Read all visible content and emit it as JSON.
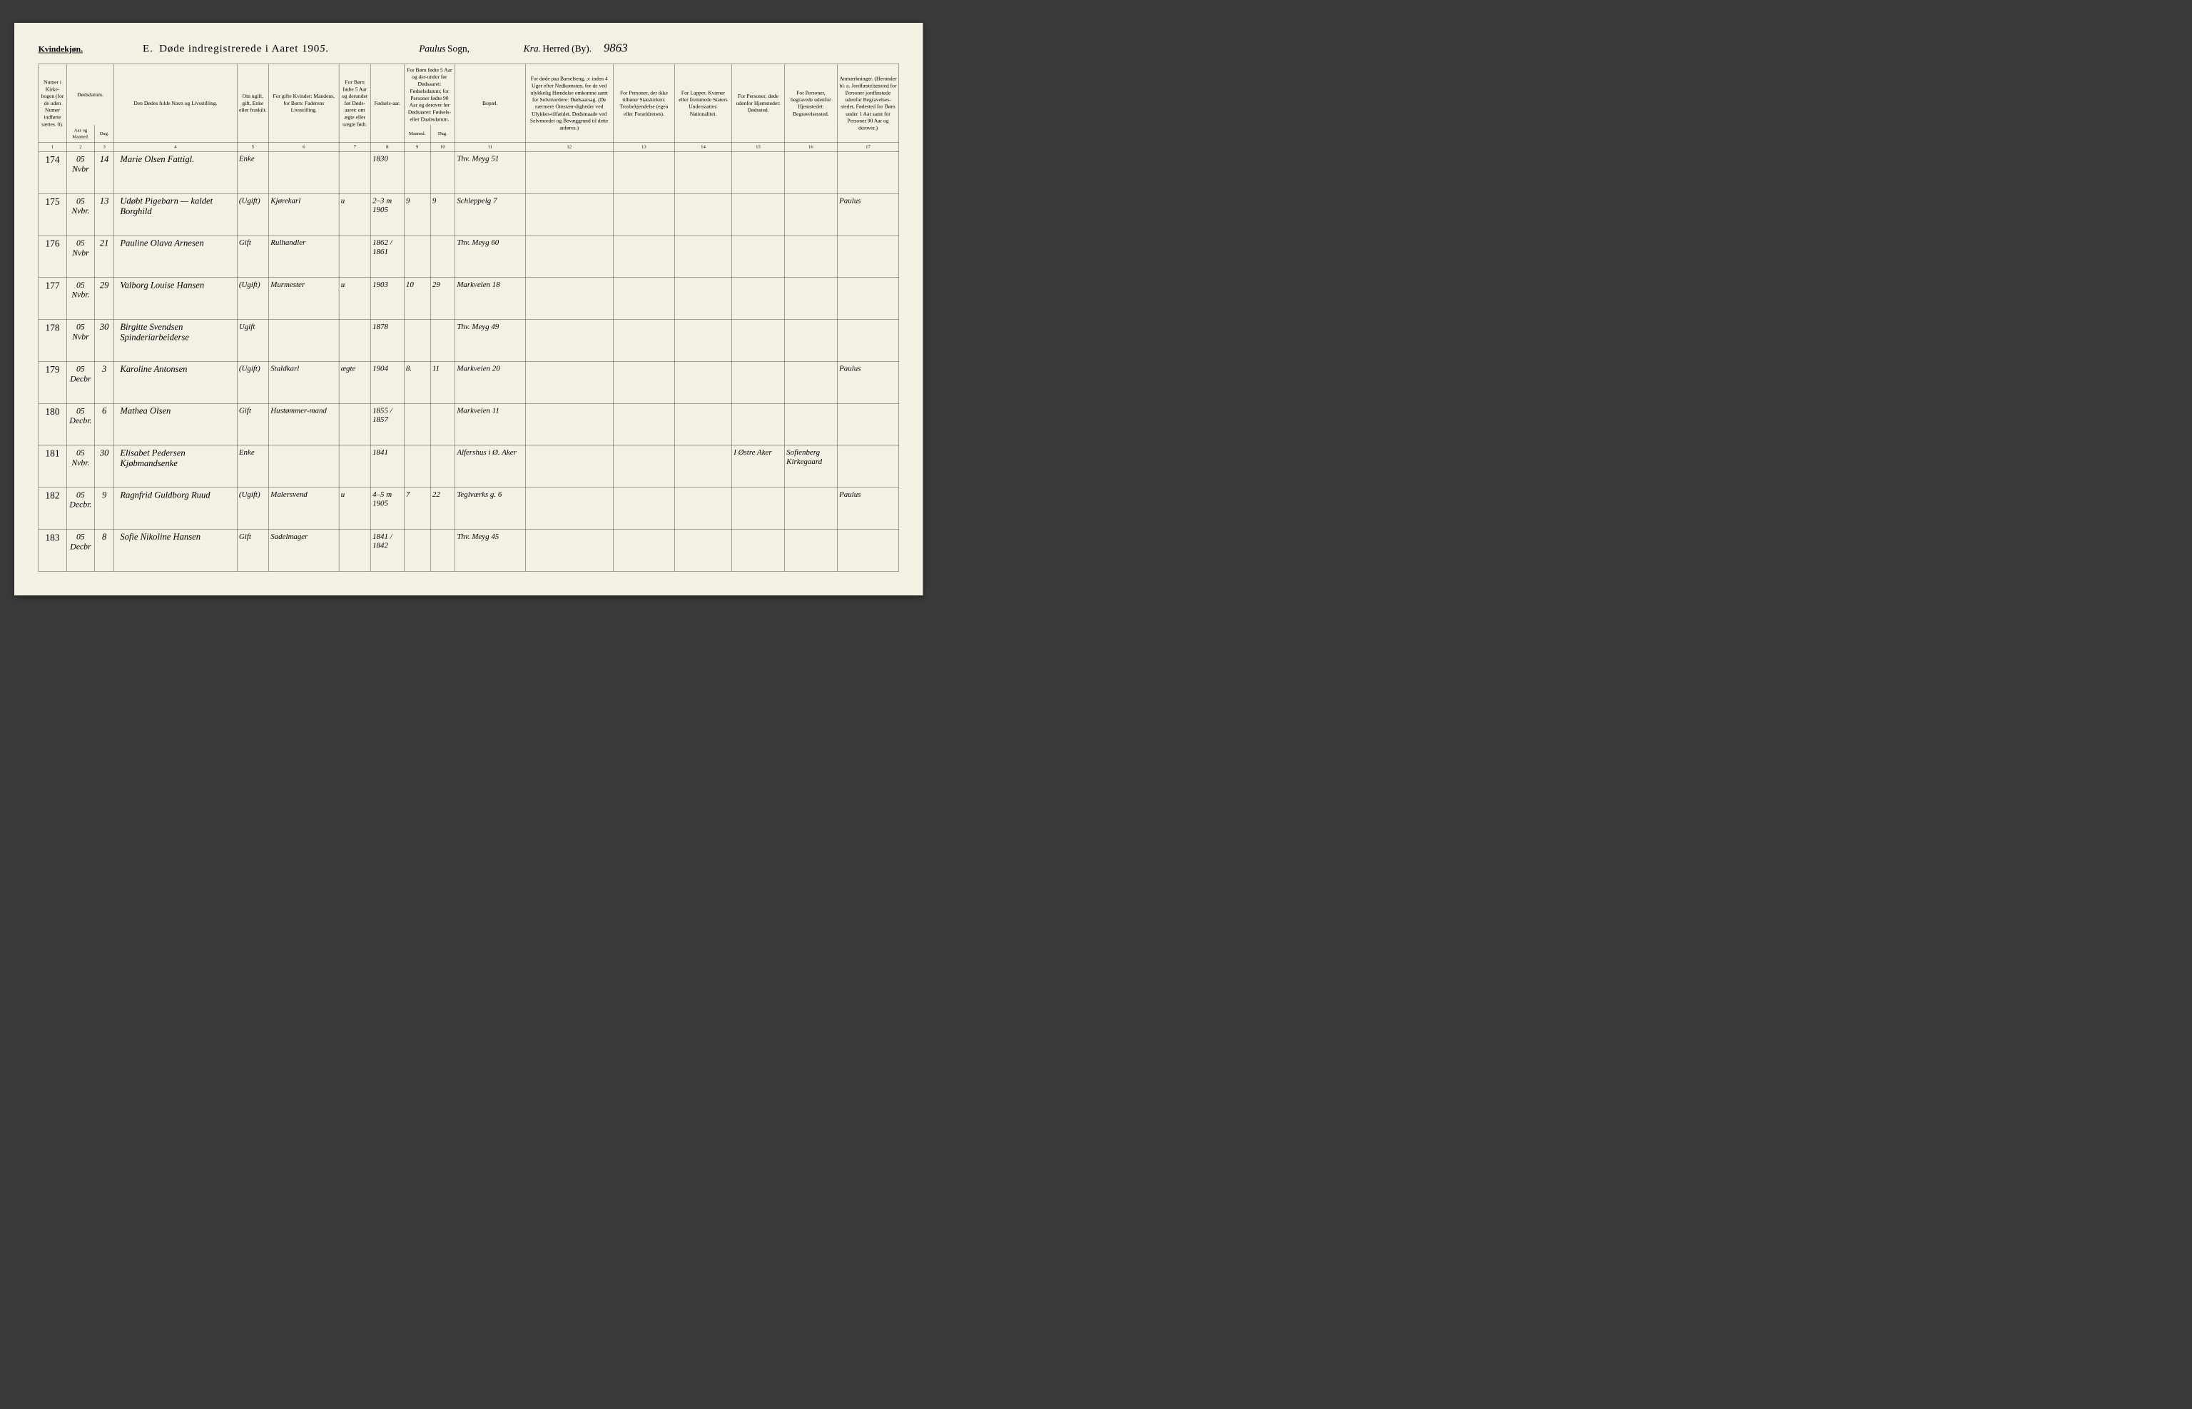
{
  "header": {
    "gender_label": "Kvindekjøn.",
    "section": "E.",
    "title_prefix": "Døde indregistrerede i Aaret 190",
    "year_suffix": "5.",
    "sogn_hand": "Paulus",
    "sogn_print": "Sogn,",
    "herred_hand": "Kra.",
    "herred_print": "Herred (By).",
    "page_number": "9863"
  },
  "columns": {
    "h1": "Numer i Kirke-bogen (for de uden Numer indførte sættes. 0).",
    "h2_top": "Dødsdatum.",
    "h2a": "Aar og Maaned.",
    "h2b": "Dag.",
    "h4": "Den Dødes fulde Navn og Livsstilling.",
    "h5": "Om ugift, gift, Enke eller fraskilt.",
    "h6": "For gifte Kvinder: Mandens, for Børn: Faderens Livsstilling.",
    "h7": "For Børn fødte 5 Aar og derunder før Døds-aaret: om ægte eller uægte født.",
    "h8": "Fødsels-aar.",
    "h9_top": "For Børn fødte 5 Aar og der-under før Dødsaaret: Fødselsdatum; for Personer fødte 90 Aar og derover før Dødsaaret: Fødsels- eller Daabsdatum.",
    "h9a": "Maaned.",
    "h9b": "Dag.",
    "h11": "Bopæl.",
    "h12": "For døde paa Barselseng, ɔ: inden 4 Uger efter Nedkomsten, for de ved ulykkelig Hændelse omkomne samt for Selvmordere: Dødsaarsag. (De nærmere Omstæn-digheder ved Ulykkes-tilfældet, Dødsmaade ved Selvmordet og Bevæggrund til dette anføres.)",
    "h13": "For Personer, der ikke tilhører Statskirken: Trosbekjendelse (egen eller Forældrenes).",
    "h14": "For Lapper, Kvæner eller fremmede Staters Undersaatter: Nationalitet.",
    "h15": "For Personer, døde udenfor Hjemstedet: Dødssted.",
    "h16": "For Personer, begravede udenfor Hjemstedet: Begravelsessted.",
    "h17": "Anmærkninger. (Herunder bl. a. Jordfæstelsessted for Personer jordfæstede udenfor Begravelses-stedet, Fødested for Børn under 1 Aar samt for Personer 90 Aar og derover.)"
  },
  "col_numbers": [
    "1",
    "2",
    "3",
    "4",
    "5",
    "6",
    "7",
    "8",
    "9",
    "10",
    "11",
    "12",
    "13",
    "14",
    "15",
    "16",
    "17"
  ],
  "rows": [
    {
      "n": "174",
      "ym": "05 Nvbr",
      "d": "14",
      "name": "Marie Olsen  Fattigl.",
      "status": "Enke",
      "occ": "",
      "leg": "",
      "yr": "1830",
      "m": "",
      "dg": "",
      "addr": "Thv. Meyg 51",
      "c12": "",
      "c13": "",
      "c14": "",
      "c15": "",
      "c16": "",
      "c17": ""
    },
    {
      "n": "175",
      "ym": "05 Nvbr.",
      "d": "13",
      "name": "Udøbt Pigebarn — kaldet Borghild",
      "status": "(Ugift)",
      "occ": "Kjørekarl",
      "leg": "u",
      "yr": "1905",
      "m": "9",
      "dg": "9",
      "addr": "Schleppelg 7",
      "c12": "",
      "c13": "",
      "c14": "",
      "c15": "",
      "c16": "",
      "c17": "Paulus",
      "note": "2–3 m"
    },
    {
      "n": "176",
      "ym": "05 Nvbr",
      "d": "21",
      "name": "Pauline Olava Arnesen",
      "status": "Gift",
      "occ": "Rulhandler",
      "leg": "",
      "yr": "1862 / 1861",
      "m": "",
      "dg": "",
      "addr": "Thv. Meyg 60",
      "c12": "",
      "c13": "",
      "c14": "",
      "c15": "",
      "c16": "",
      "c17": ""
    },
    {
      "n": "177",
      "ym": "05 Nvbr.",
      "d": "29",
      "name": "Valborg Louise Hansen",
      "status": "(Ugift)",
      "occ": "Murmester",
      "leg": "u",
      "yr": "1903",
      "m": "10",
      "dg": "29",
      "addr": "Markveien 18",
      "c12": "",
      "c13": "",
      "c14": "",
      "c15": "",
      "c16": "",
      "c17": ""
    },
    {
      "n": "178",
      "ym": "05 Nvbr",
      "d": "30",
      "name": "Birgitte Svendsen  Spinderiarbeiderse",
      "status": "Ugift",
      "occ": "",
      "leg": "",
      "yr": "1878",
      "m": "",
      "dg": "",
      "addr": "Thv. Meyg 49",
      "c12": "",
      "c13": "",
      "c14": "",
      "c15": "",
      "c16": "",
      "c17": ""
    },
    {
      "n": "179",
      "ym": "05 Decbr",
      "d": "3",
      "name": "Karoline Antonsen",
      "status": "(Ugift)",
      "occ": "Staldkarl",
      "leg": "ægte",
      "yr": "1904",
      "m": "8.",
      "dg": "11",
      "addr": "Markveien 20",
      "c12": "",
      "c13": "",
      "c14": "",
      "c15": "",
      "c16": "",
      "c17": "Paulus"
    },
    {
      "n": "180",
      "ym": "05 Decbr.",
      "d": "6",
      "name": "Mathea Olsen",
      "status": "Gift",
      "occ": "Hustømmer-mand",
      "leg": "",
      "yr": "1855 / 1857",
      "m": "",
      "dg": "",
      "addr": "Markveien 11",
      "c12": "",
      "c13": "",
      "c14": "",
      "c15": "",
      "c16": "",
      "c17": ""
    },
    {
      "n": "181",
      "ym": "05 Nvbr.",
      "d": "30",
      "name": "Elisabet Pedersen  Kjøbmandsenke",
      "status": "Enke",
      "occ": "",
      "leg": "",
      "yr": "1841",
      "m": "",
      "dg": "",
      "addr": "Alfershus i Ø. Aker",
      "c12": "",
      "c13": "",
      "c14": "",
      "c15": "I Østre Aker",
      "c16": "Sofienberg Kirkegaard",
      "c17": ""
    },
    {
      "n": "182",
      "ym": "05 Decbr.",
      "d": "9",
      "name": "Ragnfrid Guldborg Ruud",
      "status": "(Ugift)",
      "occ": "Malersvend",
      "leg": "u",
      "yr": "1905",
      "m": "7",
      "dg": "22",
      "addr": "Teglværks g. 6",
      "c12": "",
      "c13": "",
      "c14": "",
      "c15": "",
      "c16": "",
      "c17": "Paulus",
      "note": "4–5 m"
    },
    {
      "n": "183",
      "ym": "05 Decbr",
      "d": "8",
      "name": "Sofie Nikoline Hansen",
      "status": "Gift",
      "occ": "Sadelmager",
      "leg": "",
      "yr": "1841 / 1842",
      "m": "",
      "dg": "",
      "addr": "Thv. Meyg 45",
      "c12": "",
      "c13": "",
      "c14": "",
      "c15": "",
      "c16": "",
      "c17": ""
    }
  ],
  "style": {
    "paper_bg": "#f4f0e4",
    "ink": "#2a241a",
    "border": "#2a2a2a",
    "header_font_size": 18,
    "body_font_size": 30,
    "col_widths_pct": [
      3.2,
      3.2,
      2.2,
      14,
      3.6,
      8,
      3.6,
      3.8,
      3.0,
      2.8,
      8,
      10,
      7,
      6.5,
      6,
      6,
      7
    ]
  }
}
